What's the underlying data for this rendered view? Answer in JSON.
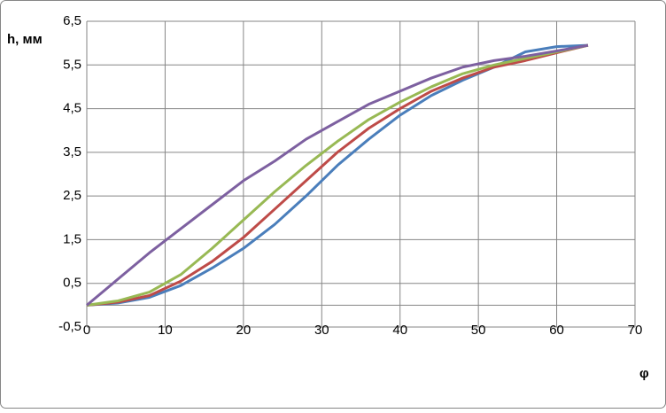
{
  "chart_data": {
    "type": "line",
    "y_label": "h, мм",
    "x_label": "φ",
    "x": [
      0,
      4,
      8,
      12,
      16,
      20,
      24,
      28,
      32,
      36,
      40,
      44,
      48,
      52,
      56,
      60,
      64
    ],
    "series": [
      {
        "color": "#4a7ebb",
        "values": [
          0,
          0.05,
          0.18,
          0.45,
          0.85,
          1.3,
          1.85,
          2.5,
          3.2,
          3.8,
          4.35,
          4.8,
          5.15,
          5.45,
          5.8,
          5.92,
          5.95
        ]
      },
      {
        "color": "#be4b48",
        "values": [
          0,
          0.07,
          0.22,
          0.55,
          1.0,
          1.55,
          2.2,
          2.85,
          3.5,
          4.05,
          4.5,
          4.9,
          5.2,
          5.45,
          5.6,
          5.78,
          5.95
        ]
      },
      {
        "color": "#98b954",
        "values": [
          0,
          0.1,
          0.3,
          0.7,
          1.3,
          1.95,
          2.6,
          3.2,
          3.75,
          4.25,
          4.65,
          5.0,
          5.3,
          5.5,
          5.65,
          5.8,
          5.95
        ]
      },
      {
        "color": "#7d60a0",
        "values": [
          0,
          0.6,
          1.2,
          1.75,
          2.3,
          2.85,
          3.3,
          3.8,
          4.2,
          4.6,
          4.9,
          5.2,
          5.45,
          5.6,
          5.7,
          5.82,
          5.95
        ]
      }
    ],
    "xlim": [
      0,
      70
    ],
    "xticks": [
      0,
      10,
      20,
      30,
      40,
      50,
      60,
      70
    ],
    "ylim": [
      -0.5,
      6.5
    ],
    "yticks": [
      {
        "value": -0.5,
        "label": "-0,5"
      },
      {
        "value": 0.5,
        "label": "0,5"
      },
      {
        "value": 1.5,
        "label": "1,5"
      },
      {
        "value": 2.5,
        "label": "2,5"
      },
      {
        "value": 3.5,
        "label": "3,5"
      },
      {
        "value": 4.5,
        "label": "4,5"
      },
      {
        "value": 5.5,
        "label": "5,5"
      },
      {
        "value": 6.5,
        "label": "6,5"
      }
    ],
    "grid": true
  }
}
